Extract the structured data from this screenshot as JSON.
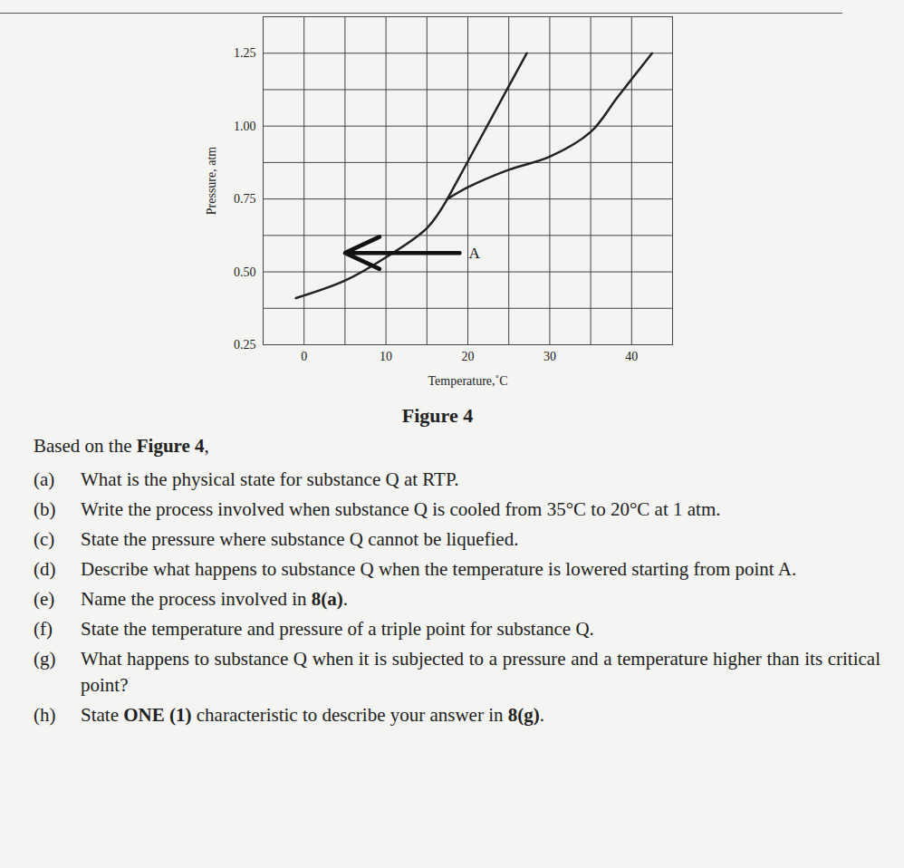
{
  "chart_data": {
    "type": "line",
    "caption": "Figure 4",
    "x_label": "Temperature,˚C",
    "y_label": "Pressure, atm",
    "xlim": [
      -5,
      45
    ],
    "ylim": [
      0.25,
      1.375
    ],
    "xticks": [
      0,
      10,
      20,
      30,
      40
    ],
    "yticks": [
      {
        "value": 0.25,
        "label": "0.25"
      },
      {
        "value": 0.5,
        "label": "0.50"
      },
      {
        "value": 0.75,
        "label": "0.75"
      },
      {
        "value": 1,
        "label": "1.00"
      },
      {
        "value": 1.25,
        "label": "1.25"
      }
    ],
    "grid": true,
    "series": [
      {
        "color": "#222222",
        "x": [
          -1,
          5,
          10,
          15,
          17.5
        ],
        "values": [
          0.41,
          0.47,
          0.55,
          0.65,
          0.75
        ]
      },
      {
        "color": "#222222",
        "x": [
          17.5,
          27.2
        ],
        "values": [
          0.75,
          1.25
        ]
      },
      {
        "color": "#222222",
        "x": [
          17.5,
          20,
          25,
          30,
          35,
          38.3,
          42.5
        ],
        "values": [
          0.75,
          0.79,
          0.85,
          0.895,
          0.98,
          1.1,
          1.25
        ]
      }
    ],
    "annotations": [
      {
        "text": "A",
        "x_from": 19,
        "x_to": 5,
        "y": 0.565
      }
    ]
  },
  "questions": {
    "intro": [
      "Based on the ",
      {
        "bold": "Figure 4"
      },
      ","
    ],
    "items": [
      {
        "label": "(a)",
        "text": [
          "What is the physical state for substance Q at RTP."
        ]
      },
      {
        "label": "(b)",
        "text": [
          "Write the process involved when substance Q is cooled from 35°C to 20°C at 1 atm."
        ]
      },
      {
        "label": "(c)",
        "text": [
          "State the pressure where substance Q cannot be liquefied."
        ]
      },
      {
        "label": "(d)",
        "text": [
          "Describe what happens to substance Q when the temperature is lowered starting from point A."
        ]
      },
      {
        "label": "(e)",
        "text": [
          "Name the process involved in ",
          {
            "bold": "8(a)"
          },
          "."
        ]
      },
      {
        "label": "(f)",
        "text": [
          "State the temperature and pressure of a triple point for substance Q."
        ]
      },
      {
        "label": "(g)",
        "text": [
          "What happens to substance Q when it is subjected to a pressure and a temperature higher than its critical point?"
        ]
      },
      {
        "label": "(h)",
        "text": [
          "State ",
          {
            "bold": "ONE (1)"
          },
          " characteristic to describe your answer in ",
          {
            "bold": "8(g)"
          },
          "."
        ]
      }
    ]
  }
}
